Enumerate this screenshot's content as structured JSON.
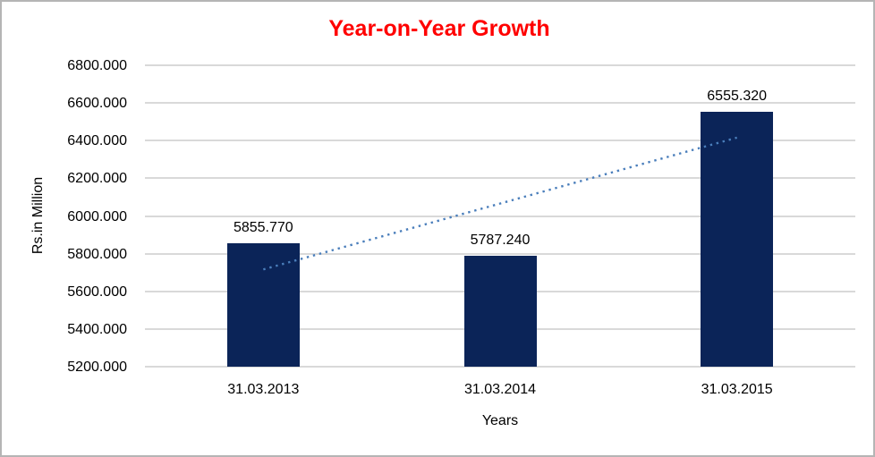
{
  "window": {
    "background": "#ffffff",
    "border_color": "#b5b5b5"
  },
  "chart_data": {
    "type": "bar",
    "title": "Year-on-Year Growth",
    "title_color": "#ff0000",
    "xlabel": "Years",
    "ylabel": "Rs.in Million",
    "categories": [
      "31.03.2013",
      "31.03.2014",
      "31.03.2015"
    ],
    "values": [
      5855.77,
      5787.24,
      6555.32
    ],
    "value_labels": [
      "5855.770",
      "5787.240",
      "6555.320"
    ],
    "ylim": [
      5200,
      6800
    ],
    "ytick_step": 200,
    "yticks": [
      "5200.000",
      "5400.000",
      "5600.000",
      "5800.000",
      "6000.000",
      "6200.000",
      "6400.000",
      "6600.000",
      "6800.000"
    ],
    "grid": true,
    "legend": "none",
    "bar_color": "#0b2458",
    "gridline_color": "#d9d9d9",
    "text_color": "#000000",
    "trendline": {
      "type": "linear",
      "style": "dotted",
      "color": "#4a7ebb"
    }
  }
}
